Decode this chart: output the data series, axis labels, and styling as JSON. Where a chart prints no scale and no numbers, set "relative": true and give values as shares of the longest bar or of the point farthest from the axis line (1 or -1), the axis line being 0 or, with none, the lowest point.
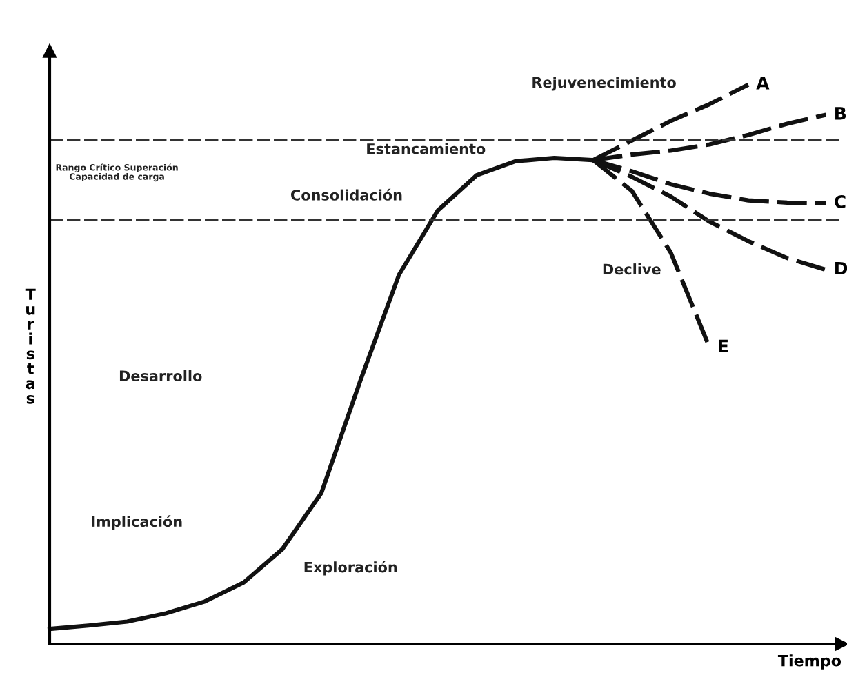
{
  "chart_data": {
    "type": "line",
    "relative": true,
    "xlabel": "Tiempo",
    "ylabel": "Turistas",
    "categories": [
      null,
      null,
      null,
      null,
      null,
      null,
      null,
      null,
      null,
      null,
      null,
      null,
      null,
      null,
      null,
      null,
      null,
      null,
      null,
      null,
      null
    ],
    "series": [
      {
        "color": "#111111",
        "line_style": "solid",
        "values": [
          0.027,
          0.033,
          0.04,
          0.055,
          0.076,
          0.11,
          0.17,
          0.27,
          0.47,
          0.66,
          0.775,
          0.838,
          0.863,
          0.869,
          0.865,
          null,
          null,
          null,
          null,
          null,
          null
        ]
      },
      {
        "name": "A",
        "color": "#111111",
        "line_style": "dashed",
        "values": [
          null,
          null,
          null,
          null,
          null,
          null,
          null,
          null,
          null,
          null,
          null,
          null,
          null,
          null,
          0.865,
          0.9,
          0.935,
          0.965,
          1.0,
          null,
          null
        ]
      },
      {
        "name": "B",
        "color": "#111111",
        "line_style": "dashed",
        "values": [
          null,
          null,
          null,
          null,
          null,
          null,
          null,
          null,
          null,
          null,
          null,
          null,
          null,
          null,
          0.865,
          0.875,
          0.882,
          0.893,
          0.91,
          0.93,
          0.946
        ]
      },
      {
        "name": "C",
        "color": "#111111",
        "line_style": "dashed",
        "values": [
          null,
          null,
          null,
          null,
          null,
          null,
          null,
          null,
          null,
          null,
          null,
          null,
          null,
          null,
          0.865,
          0.845,
          0.822,
          0.805,
          0.793,
          0.789,
          0.788
        ]
      },
      {
        "name": "D",
        "color": "#111111",
        "line_style": "dashed",
        "values": [
          null,
          null,
          null,
          null,
          null,
          null,
          null,
          null,
          null,
          null,
          null,
          null,
          null,
          null,
          0.865,
          0.835,
          0.8,
          0.755,
          0.72,
          0.69,
          0.669
        ]
      },
      {
        "name": "E",
        "color": "#111111",
        "line_style": "dashed",
        "values": [
          null,
          null,
          null,
          null,
          null,
          null,
          null,
          null,
          null,
          null,
          null,
          null,
          null,
          null,
          0.865,
          0.81,
          0.7,
          0.53,
          null,
          null,
          null
        ]
      }
    ],
    "ref_lines": [
      {
        "axis": "y",
        "value": 0.901,
        "color": "#333333",
        "line_style": "dashed"
      },
      {
        "axis": "y",
        "value": 0.758,
        "color": "#333333",
        "line_style": "dashed"
      }
    ],
    "annotations": [
      "Rejuvenecimiento",
      "Estancamiento",
      "Rango Crítico Superación\nCapacidad de carga",
      "Consolidación",
      "Declive",
      "Desarrollo",
      "Implicación",
      "Exploración"
    ]
  }
}
